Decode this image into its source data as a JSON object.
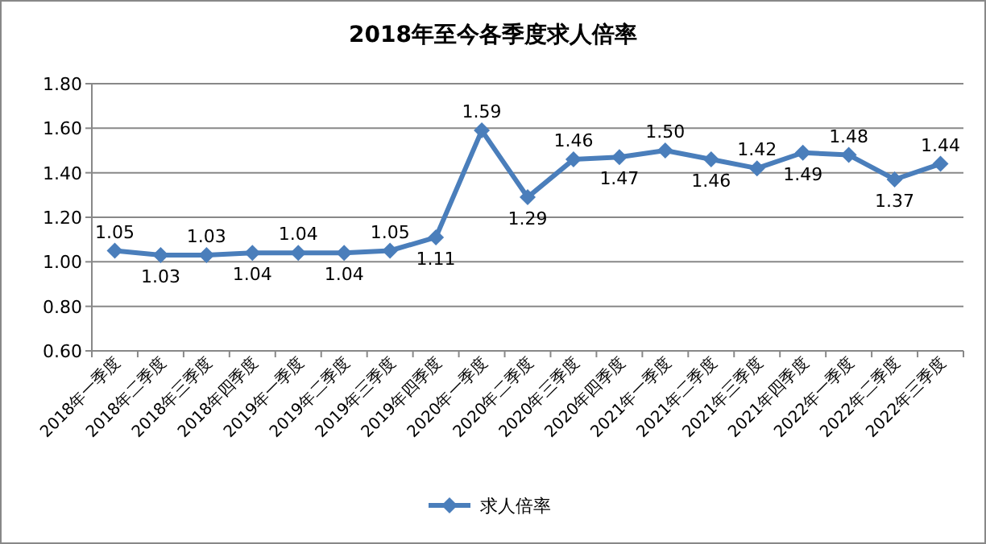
{
  "chart_data": {
    "type": "line",
    "title": "2018年至今各季度求人倍率",
    "categories": [
      "2018年一季度",
      "2018年二季度",
      "2018年三季度",
      "2018年四季度",
      "2019年一季度",
      "2019年二季度",
      "2019年三季度",
      "2019年四季度",
      "2020年一季度",
      "2020年二季度",
      "2020年三季度",
      "2020年四季度",
      "2021年一季度",
      "2021年二季度",
      "2021年三季度",
      "2021年四季度",
      "2022年一季度",
      "2022年二季度",
      "2022年三季度"
    ],
    "series": [
      {
        "name": "求人倍率",
        "color": "#4a7ebb",
        "values": [
          1.05,
          1.03,
          1.03,
          1.04,
          1.04,
          1.04,
          1.05,
          1.11,
          1.59,
          1.29,
          1.46,
          1.47,
          1.5,
          1.46,
          1.42,
          1.49,
          1.48,
          1.37,
          1.44
        ],
        "value_labels": [
          "1.05",
          "1.03",
          "1.03",
          "1.04",
          "1.04",
          "1.04",
          "1.05",
          "1.11",
          "1.59",
          "1.29",
          "1.46",
          "1.47",
          "1.50",
          "1.46",
          "1.42",
          "1.49",
          "1.48",
          "1.37",
          "1.44"
        ]
      }
    ],
    "ylim": [
      0.6,
      1.8
    ],
    "yticks": [
      {
        "value": 0.6,
        "label": "0.60"
      },
      {
        "value": 0.8,
        "label": "0.80"
      },
      {
        "value": 1.0,
        "label": "1.00"
      },
      {
        "value": 1.2,
        "label": "1.20"
      },
      {
        "value": 1.4,
        "label": "1.40"
      },
      {
        "value": 1.6,
        "label": "1.60"
      },
      {
        "value": 1.8,
        "label": "1.80"
      }
    ],
    "grid": "y",
    "legend": "bottom",
    "marker": "diamond",
    "line_style": "solid"
  }
}
